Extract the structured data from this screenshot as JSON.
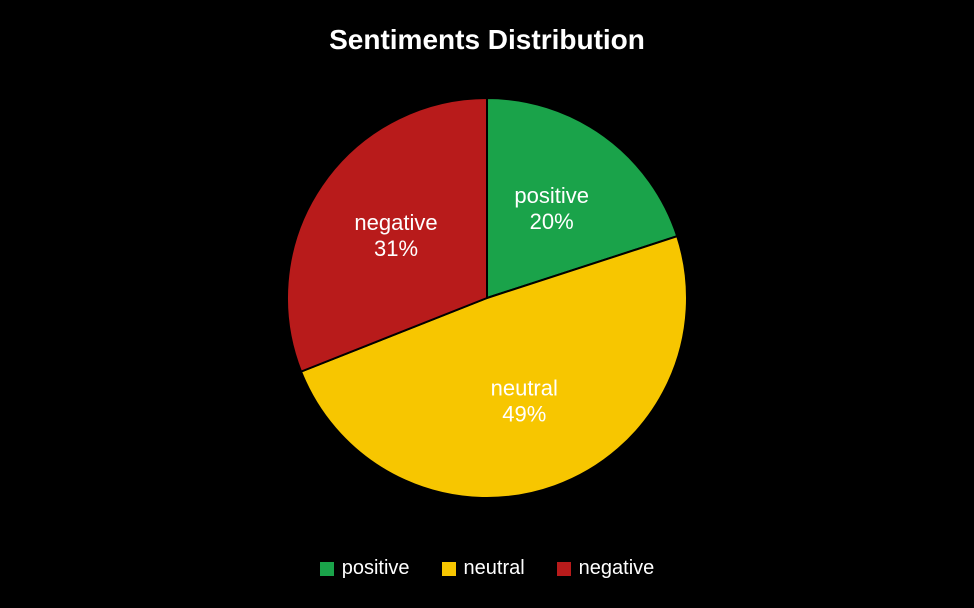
{
  "chart": {
    "type": "pie",
    "title": "Sentiments Distribution",
    "title_fontsize": 28,
    "title_fontweight": 700,
    "title_color": "#ffffff",
    "background_color": "#000000",
    "outer_border_color": "#000000",
    "slice_border_color": "#000000",
    "slice_border_width": 2,
    "radius": 200,
    "start_angle_deg": 0,
    "label_fontsize": 22,
    "label_color": "#ffffff",
    "legend_fontsize": 20,
    "legend_color": "#ffffff",
    "legend_swatch_size": 14,
    "slices": [
      {
        "key": "positive",
        "label": "positive",
        "value": 20,
        "percent_text": "20%",
        "color": "#1aa34a"
      },
      {
        "key": "neutral",
        "label": "neutral",
        "value": 49,
        "percent_text": "49%",
        "color": "#f7c600"
      },
      {
        "key": "negative",
        "label": "negative",
        "value": 31,
        "percent_text": "31%",
        "color": "#b81b1b"
      }
    ],
    "legend_items": [
      {
        "key": "positive",
        "label": "positive",
        "color": "#1aa34a"
      },
      {
        "key": "neutral",
        "label": "neutral",
        "color": "#f7c600"
      },
      {
        "key": "negative",
        "label": "negative",
        "color": "#b81b1b"
      }
    ]
  }
}
